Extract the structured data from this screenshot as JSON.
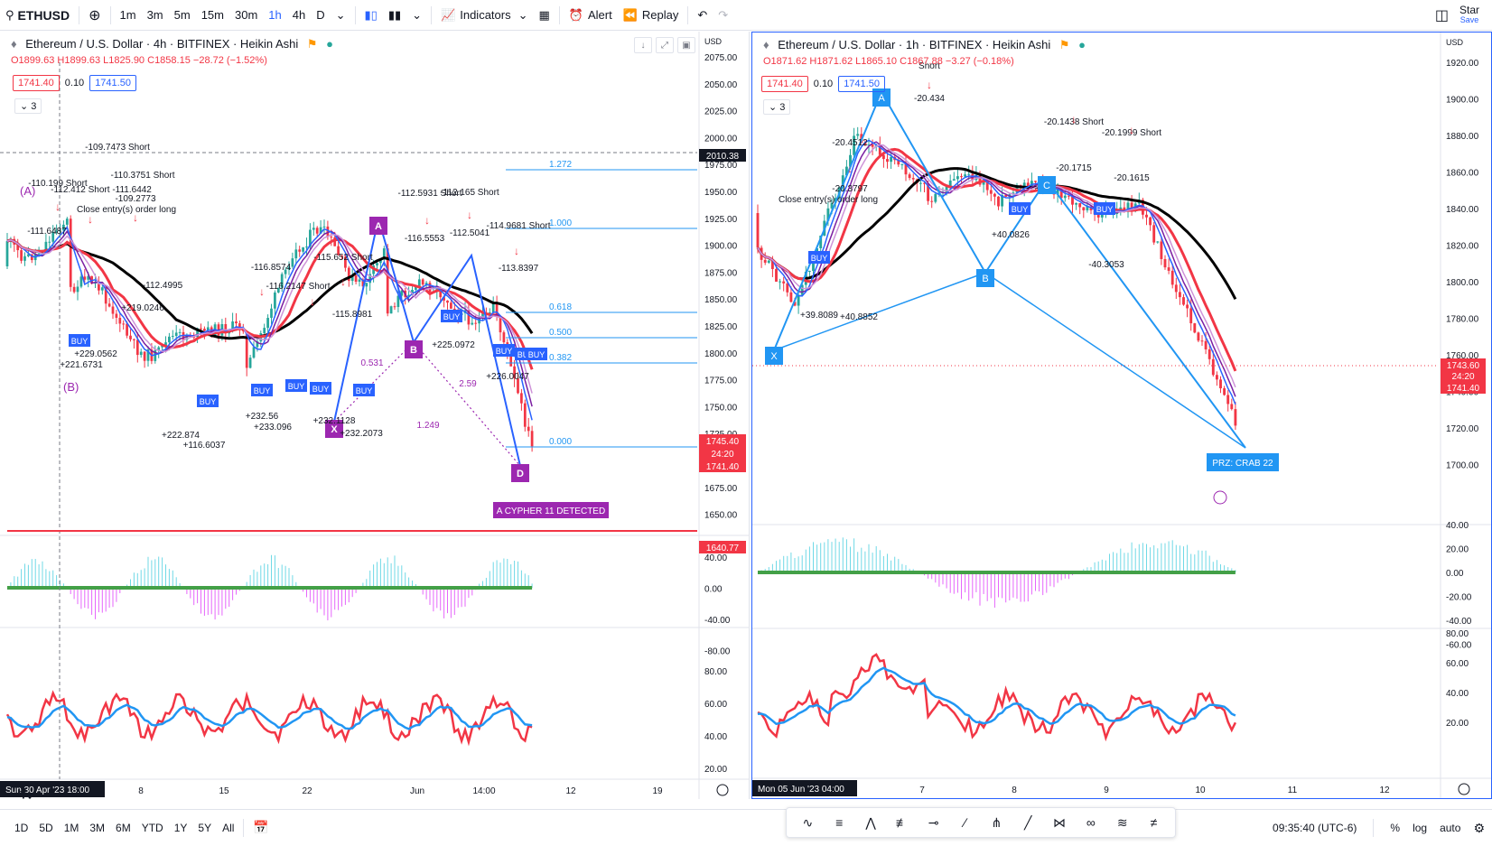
{
  "topbar": {
    "symbol": "ETHUSD",
    "intervals": [
      "1m",
      "3m",
      "5m",
      "15m",
      "30m",
      "1h",
      "4h",
      "D"
    ],
    "active_interval": "1h",
    "indicators_label": "Indicators",
    "alert_label": "Alert",
    "replay_label": "Replay",
    "star_label": "Star",
    "save_label": "Save"
  },
  "left_chart": {
    "title": "Ethereum / U.S. Dollar · 4h · BITFINEX · Heikin Ashi",
    "ohlc": {
      "o": "O1899.63",
      "h": "H1899.63",
      "l": "L1825.90",
      "c": "C1858.15",
      "chg": "−28.72 (−1.52%)"
    },
    "bid": "1741.40",
    "spread": "0.10",
    "ask": "1741.50",
    "indicator_count": "3",
    "currency": "USD",
    "y_ticks": [
      "2075.00",
      "2050.00",
      "2025.00",
      "2000.00",
      "1975.00",
      "1950.00",
      "1925.00",
      "1900.00",
      "1875.00",
      "1850.00",
      "1825.00",
      "1800.00",
      "1775.00",
      "1750.00",
      "1725.00",
      "1700.00",
      "1675.00",
      "1650.00"
    ],
    "price_tags": [
      {
        "label": "2010.38",
        "color": "#131722"
      },
      {
        "label": "1745.40",
        "color": "#f23645"
      },
      {
        "label": "24:20",
        "color": "#f23645"
      },
      {
        "label": "1741.40",
        "color": "#f23645"
      },
      {
        "label": "1640.77",
        "color": "#f23645"
      }
    ],
    "fib_levels": [
      "1.272",
      "1.000",
      "0.618",
      "0.500",
      "0.382",
      "0.000"
    ],
    "pattern_points": [
      "X",
      "A",
      "B",
      "D"
    ],
    "pattern_ratios": [
      "0.531",
      "2.59",
      "1.249"
    ],
    "pattern_label": "A CYPHER 11 DETECTED",
    "wave_labels": [
      "(A)",
      "(B)"
    ],
    "annotations": [
      "-109.7473 Short",
      "-110.3751 Short",
      "-110.199 Short",
      "-112.412 Short -111.6442",
      "-109.2773",
      "-111.6487",
      "Close entry(s) order long",
      "-112.4995",
      "-116.8574",
      "-116.2147 Short",
      "-115.652 Short",
      "-115.8981",
      "-112.5931 Short",
      "-112.165 Short",
      "-114.9681 Short",
      "-113.8397",
      "-116.5553",
      "-112.5041",
      "+219.0246",
      "+221.6731",
      "+229.0562",
      "+222.874",
      "+116.6037",
      "+232.56",
      "+233.096",
      "+232.1128",
      "+232.2073",
      "+225.0972",
      "+226.0047"
    ],
    "signal_labels": [
      "BUY",
      "long",
      "Short"
    ],
    "osc1_ticks": [
      "40.00",
      "0.00",
      "-40.00",
      "-80.00"
    ],
    "osc2_ticks": [
      "80.00",
      "60.00",
      "40.00",
      "20.00"
    ],
    "x_ticks": [
      "8",
      "15",
      "22",
      "Jun",
      "14:00",
      "12",
      "19"
    ],
    "x_cursor": "Sun 30 Apr '23   18:00"
  },
  "right_chart": {
    "title": "Ethereum / U.S. Dollar · 1h · BITFINEX · Heikin Ashi",
    "ohlc": {
      "o": "O1871.62",
      "h": "H1871.62",
      "l": "L1865.10",
      "c": "C1867.88",
      "chg": "−3.27 (−0.18%)"
    },
    "bid": "1741.40",
    "spread": "0.10",
    "ask": "1741.50",
    "indicator_count": "3",
    "currency": "USD",
    "y_ticks": [
      "1920.00",
      "1900.00",
      "1880.00",
      "1860.00",
      "1840.00",
      "1820.00",
      "1800.00",
      "1780.00",
      "1760.00",
      "1740.00",
      "1720.00",
      "1700.00"
    ],
    "price_tags": [
      {
        "label": "1743.60",
        "color": "#f23645"
      },
      {
        "label": "24:20",
        "color": "#f23645"
      },
      {
        "label": "1741.40",
        "color": "#f23645"
      }
    ],
    "pattern_points": [
      "X",
      "A",
      "B",
      "C"
    ],
    "prz_label": "PRZ: CRAB 22",
    "annotations": [
      "-20.434",
      "Short",
      "-20.4512",
      "-20.3797",
      "-20.1438 Short",
      "-20.1999 Short",
      "-20.1715",
      "-20.1615",
      "Close entry(s) order long",
      "+39.8089",
      "+40.8852",
      "+40.0826",
      "-40.3053"
    ],
    "osc1_ticks": [
      "40.00",
      "20.00",
      "0.00",
      "-20.00",
      "-40.00",
      "-60.00"
    ],
    "osc2_ticks": [
      "80.00",
      "60.00",
      "40.00",
      "20.00"
    ],
    "x_ticks": [
      "7",
      "8",
      "9",
      "10",
      "11",
      "12"
    ],
    "x_cursor": "Mon 05 Jun '23   04:00"
  },
  "bottombar": {
    "ranges": [
      "1D",
      "5D",
      "1M",
      "3M",
      "6M",
      "YTD",
      "1Y",
      "5Y",
      "All"
    ],
    "time": "09:35:40 (UTC-6)",
    "percent": "%",
    "log": "log",
    "auto": "auto"
  },
  "colors": {
    "up": "#26a69a",
    "down": "#f23645",
    "accent": "#2962ff",
    "purple": "#9c27b0"
  }
}
